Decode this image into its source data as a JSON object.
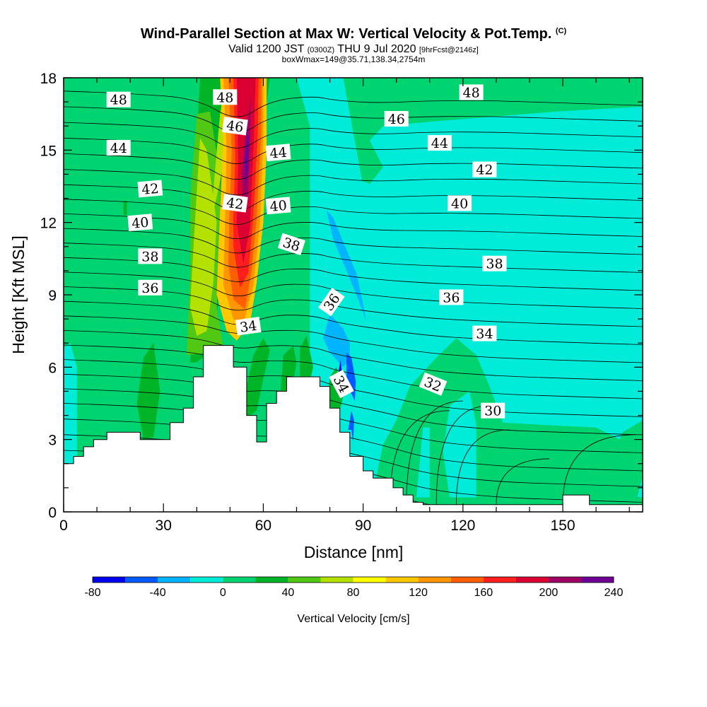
{
  "title": {
    "main": "Wind-Parallel Section at Max W: Vertical Velocity & Pot.Temp.",
    "copyright": "(C)",
    "valid_prefix": "Valid 1200 JST",
    "valid_utc": "(0300Z)",
    "valid_date": "THU 9 Jul 2020",
    "forecast": "[9hrFcst@2146z]",
    "box": "boxWmax=149@35.71,138.34,2754m"
  },
  "chart_data": {
    "type": "heatmap",
    "xlabel": "Distance [nm]",
    "ylabel": "Height [Kft MSL]",
    "xlim": [
      0,
      174
    ],
    "ylim": [
      0,
      18
    ],
    "x_ticks": [
      0,
      30,
      60,
      90,
      120,
      150
    ],
    "y_ticks": [
      0,
      3,
      6,
      9,
      12,
      15,
      18
    ],
    "colorbar": {
      "label": "Vertical Velocity [cm/s]",
      "tick_labels": [
        "-80",
        "-40",
        "0",
        "40",
        "80",
        "120",
        "160",
        "200",
        "240"
      ],
      "levels": [
        -80,
        -60,
        -40,
        -20,
        0,
        20,
        40,
        60,
        80,
        100,
        120,
        140,
        160,
        180,
        200,
        220,
        240
      ],
      "colors": [
        "#0000f0",
        "#005aff",
        "#00b4ff",
        "#00ecd8",
        "#00d470",
        "#00b428",
        "#50c814",
        "#b4e100",
        "#ffff00",
        "#ffc800",
        "#ff9600",
        "#ff5f00",
        "#ff1e1e",
        "#dc0032",
        "#a00064",
        "#6e0096"
      ]
    },
    "terrain_nm_kft": [
      [
        0,
        2
      ],
      [
        3,
        2
      ],
      [
        3,
        2.3
      ],
      [
        6,
        2.3
      ],
      [
        6,
        2.7
      ],
      [
        9,
        2.7
      ],
      [
        9,
        3
      ],
      [
        13,
        3
      ],
      [
        13,
        3.3
      ],
      [
        23,
        3.3
      ],
      [
        23,
        3
      ],
      [
        32,
        3
      ],
      [
        32,
        3.7
      ],
      [
        36,
        3.7
      ],
      [
        36,
        4.3
      ],
      [
        39,
        4.3
      ],
      [
        39,
        5.6
      ],
      [
        42,
        5.6
      ],
      [
        42,
        6.9
      ],
      [
        51,
        6.9
      ],
      [
        51,
        6
      ],
      [
        55,
        6
      ],
      [
        55,
        4
      ],
      [
        58,
        4
      ],
      [
        58,
        2.9
      ],
      [
        61,
        2.9
      ],
      [
        61,
        4.5
      ],
      [
        64,
        4.5
      ],
      [
        64,
        5
      ],
      [
        67,
        5
      ],
      [
        67,
        5.6
      ],
      [
        77,
        5.6
      ],
      [
        77,
        5.2
      ],
      [
        80,
        5.2
      ],
      [
        80,
        4.3
      ],
      [
        83,
        4.3
      ],
      [
        83,
        3.3
      ],
      [
        86,
        3.3
      ],
      [
        86,
        2.3
      ],
      [
        90,
        2.3
      ],
      [
        90,
        1.7
      ],
      [
        93,
        1.7
      ],
      [
        93,
        1.4
      ],
      [
        99,
        1.4
      ],
      [
        99,
        1
      ],
      [
        102,
        1
      ],
      [
        102,
        0.7
      ],
      [
        105,
        0.7
      ],
      [
        105,
        0.4
      ],
      [
        108,
        0.4
      ],
      [
        108,
        0.3
      ],
      [
        150,
        0.3
      ],
      [
        150,
        0.7
      ],
      [
        158,
        0.7
      ],
      [
        158,
        0.3
      ],
      [
        174,
        0.3
      ],
      [
        174,
        0
      ],
      [
        0,
        0
      ]
    ],
    "theta_contour_labels": [
      {
        "text": "48",
        "x": 16.5,
        "y": 17.1,
        "rot": 0
      },
      {
        "text": "44",
        "x": 16.5,
        "y": 15.1,
        "rot": 0
      },
      {
        "text": "42",
        "x": 26,
        "y": 13.4,
        "rot": -5
      },
      {
        "text": "40",
        "x": 23,
        "y": 12,
        "rot": -5
      },
      {
        "text": "38",
        "x": 26,
        "y": 10.6,
        "rot": 0
      },
      {
        "text": "36",
        "x": 26,
        "y": 9.3,
        "rot": 0
      },
      {
        "text": "48",
        "x": 48.5,
        "y": 17.2,
        "rot": 0
      },
      {
        "text": "46",
        "x": 51.5,
        "y": 16,
        "rot": 8
      },
      {
        "text": "42",
        "x": 51.5,
        "y": 12.8,
        "rot": 8
      },
      {
        "text": "44",
        "x": 64.5,
        "y": 14.9,
        "rot": -5
      },
      {
        "text": "40",
        "x": 64.5,
        "y": 12.7,
        "rot": -5
      },
      {
        "text": "38",
        "x": 68.5,
        "y": 11.1,
        "rot": 18
      },
      {
        "text": "34",
        "x": 55.5,
        "y": 7.7,
        "rot": -8
      },
      {
        "text": "36",
        "x": 80.5,
        "y": 8.7,
        "rot": -55
      },
      {
        "text": "34",
        "x": 83.5,
        "y": 5.3,
        "rot": 62
      },
      {
        "text": "46",
        "x": 100,
        "y": 16.3,
        "rot": 0
      },
      {
        "text": "44",
        "x": 113,
        "y": 15.3,
        "rot": 0
      },
      {
        "text": "42",
        "x": 126.5,
        "y": 14.2,
        "rot": 0
      },
      {
        "text": "40",
        "x": 119,
        "y": 12.8,
        "rot": 0
      },
      {
        "text": "38",
        "x": 129.5,
        "y": 10.3,
        "rot": 0
      },
      {
        "text": "36",
        "x": 116.5,
        "y": 8.9,
        "rot": 0
      },
      {
        "text": "34",
        "x": 126.5,
        "y": 7.4,
        "rot": 0
      },
      {
        "text": "32",
        "x": 111,
        "y": 5.3,
        "rot": 22
      },
      {
        "text": "30",
        "x": 129,
        "y": 4.2,
        "rot": 0
      },
      {
        "text": "48",
        "x": 122.5,
        "y": 17.4,
        "rot": 0
      }
    ]
  }
}
